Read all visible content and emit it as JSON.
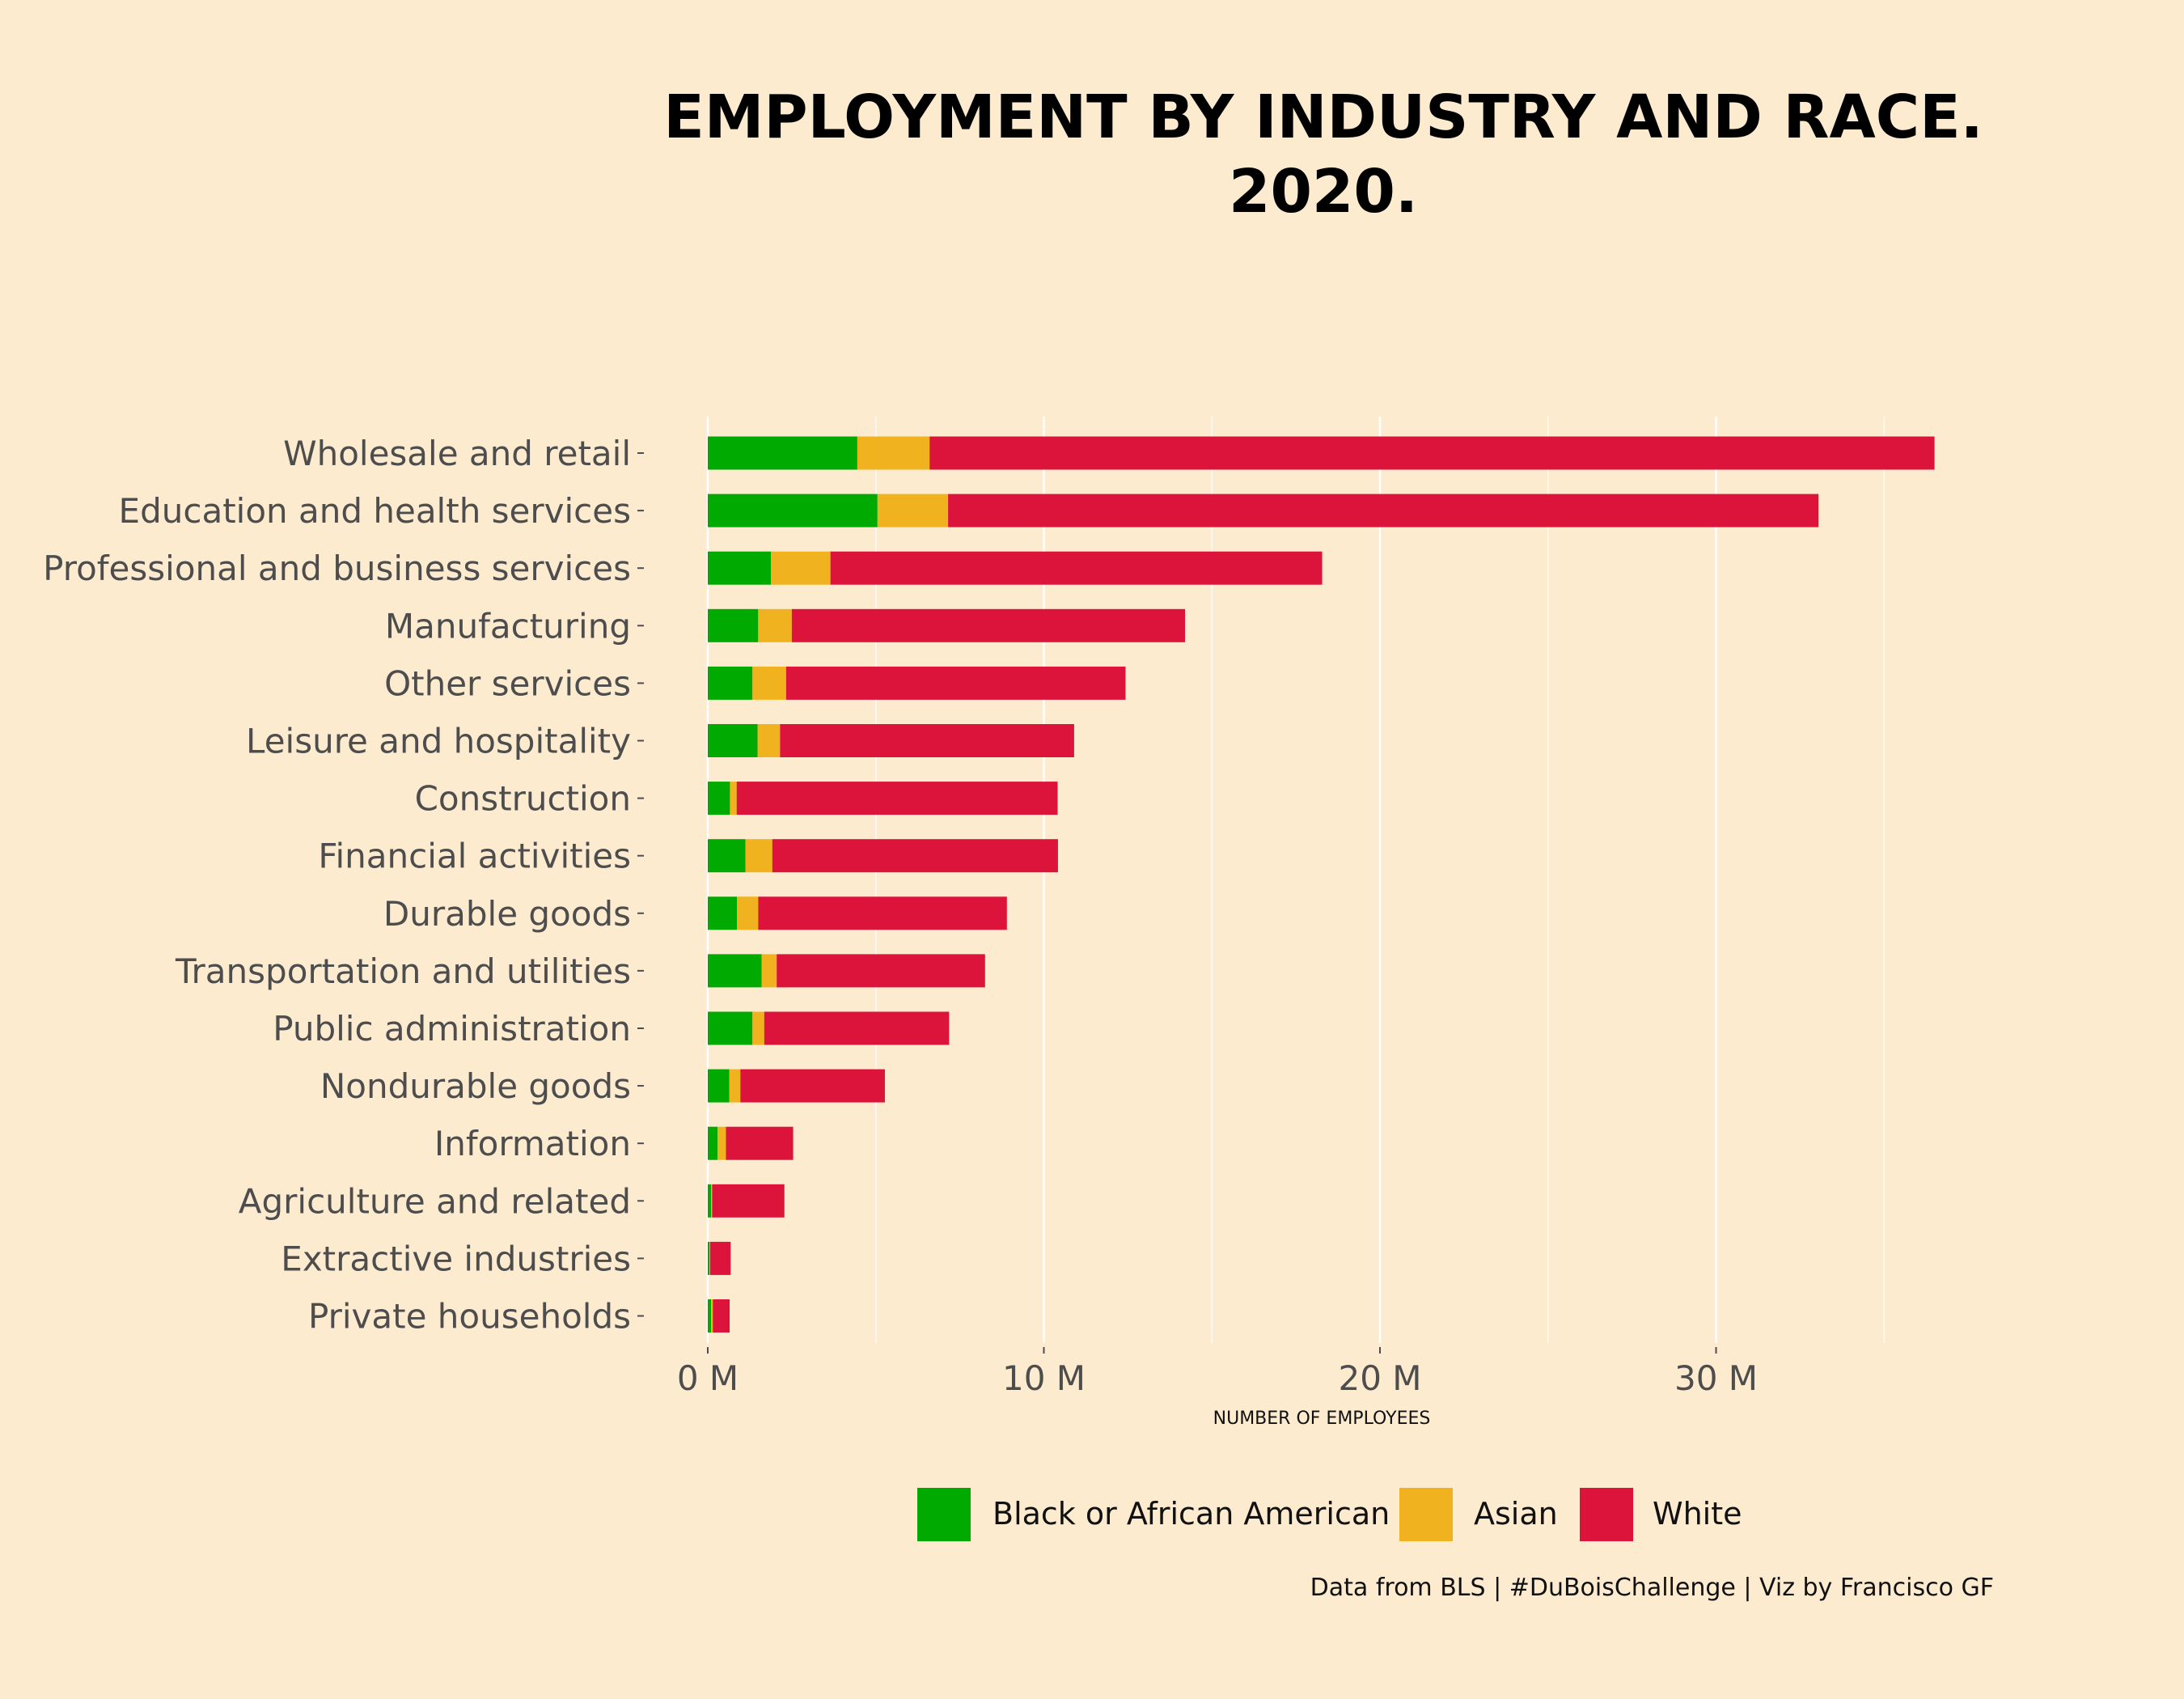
{
  "chart_data": {
    "type": "bar",
    "orientation": "horizontal",
    "stacked": true,
    "title": "EMPLOYMENT BY INDUSTRY AND RACE.",
    "subtitle": "2020.",
    "xlabel": "NUMBER OF EMPLOYEES",
    "ylabel": "",
    "xlim": [
      0,
      36.5
    ],
    "xticks": [
      0,
      10,
      20,
      30
    ],
    "xtick_labels": [
      "0 M",
      "10 M",
      "20 M",
      "30 M"
    ],
    "grid": "vertical",
    "legend_position": "bottom",
    "caption": "Data from BLS | #DuBoisChallenge | Viz by Francisco GF",
    "categories": [
      "Wholesale and retail",
      "Education and health services",
      "Professional and business services",
      "Manufacturing",
      "Other services",
      "Leisure and hospitality",
      "Construction",
      "Financial activities",
      "Durable goods",
      "Transportation and utilities",
      "Public administration",
      "Nondurable goods",
      "Information",
      "Agriculture and related",
      "Extractive industries",
      "Private households"
    ],
    "series": [
      {
        "name": "Black or African American",
        "color": "#00aa00",
        "values": [
          4.45,
          5.05,
          1.88,
          1.5,
          1.33,
          1.48,
          0.66,
          1.12,
          0.87,
          1.6,
          1.33,
          0.64,
          0.29,
          0.1,
          0.05,
          0.1
        ]
      },
      {
        "name": "Asian",
        "color": "#f0b21f",
        "values": [
          2.15,
          2.1,
          1.77,
          1.0,
          1.0,
          0.67,
          0.2,
          0.8,
          0.63,
          0.45,
          0.35,
          0.33,
          0.25,
          0.03,
          0.02,
          0.05
        ]
      },
      {
        "name": "White",
        "color": "#dc143c",
        "values": [
          29.9,
          25.9,
          14.63,
          11.7,
          10.1,
          8.75,
          9.55,
          8.5,
          7.4,
          6.2,
          5.5,
          4.3,
          2.0,
          2.15,
          0.61,
          0.5
        ]
      }
    ]
  }
}
